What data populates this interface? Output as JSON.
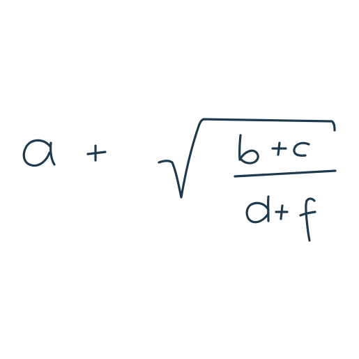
{
  "expression": {
    "latex": "a + \\sqrt{\\frac{b+c}{d+f}}",
    "tokens": {
      "a": "a",
      "plus_outer": "+",
      "numerator": {
        "b": "b",
        "plus": "+",
        "c": "c"
      },
      "denominator": {
        "d": "d",
        "plus": "+",
        "f": "f"
      }
    }
  },
  "style": {
    "ink_color": "#1f3a4d",
    "background_color": "#ffffff"
  }
}
